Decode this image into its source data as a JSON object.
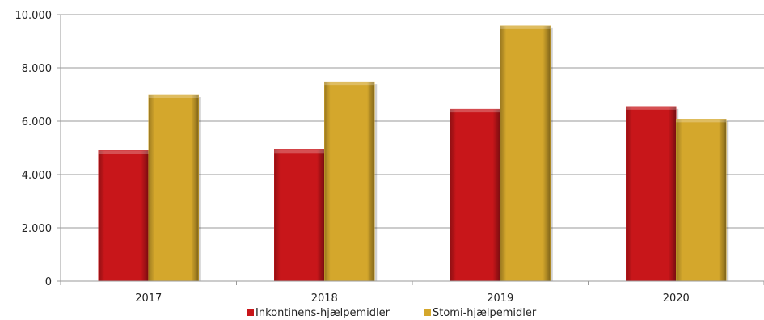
{
  "chart_data": {
    "type": "bar",
    "categories": [
      "2017",
      "2018",
      "2019",
      "2020"
    ],
    "series": [
      {
        "name": "Inkontinens-hjælpemidler",
        "values": [
          4900,
          4930,
          6450,
          6550
        ],
        "color": "#c8161a"
      },
      {
        "name": "Stomi-hjælpemidler",
        "values": [
          7000,
          7480,
          9580,
          6080
        ],
        "color": "#d4a72c"
      }
    ],
    "ylim": [
      0,
      10000
    ],
    "y_ticks": [
      0,
      2000,
      4000,
      6000,
      8000,
      10000
    ],
    "y_tick_labels": [
      "0",
      "2.000",
      "4.000",
      "6.000",
      "8.000",
      "10.000"
    ],
    "grid": true,
    "legend_position": "bottom"
  }
}
